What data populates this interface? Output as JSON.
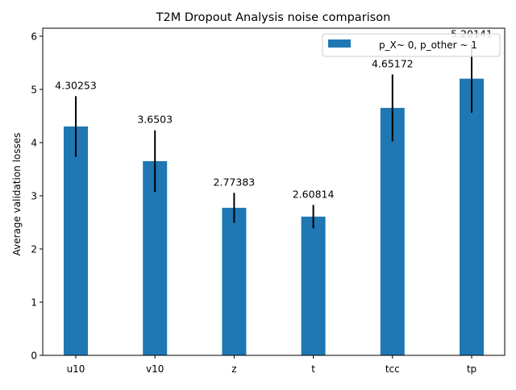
{
  "chart_data": {
    "type": "bar",
    "title": "T2M Dropout Analysis noise comparison",
    "xlabel": "",
    "ylabel": "Average validation losses",
    "categories": [
      "u10",
      "v10",
      "z",
      "t",
      "tcc",
      "tp"
    ],
    "series": [
      {
        "name": "p_X~ 0, p_other ~ 1",
        "values": [
          4.30253,
          3.6503,
          2.77383,
          2.60814,
          4.65172,
          5.20141
        ],
        "errors": [
          0.57,
          0.58,
          0.28,
          0.22,
          0.63,
          0.64
        ],
        "value_labels": [
          "4.30253",
          "3.6503",
          "2.77383",
          "2.60814",
          "4.65172",
          "5.20141"
        ],
        "color": "#1f77b4",
        "error_color": "#000000"
      }
    ],
    "ylim": [
      0,
      6.15
    ],
    "yticks": [
      0,
      1,
      2,
      3,
      4,
      5,
      6
    ],
    "ytick_labels": [
      "0",
      "1",
      "2",
      "3",
      "4",
      "5",
      "6"
    ],
    "grid": false,
    "legend": {
      "position": "top-right",
      "entries": [
        "p_X~ 0, p_other ~ 1"
      ]
    }
  }
}
